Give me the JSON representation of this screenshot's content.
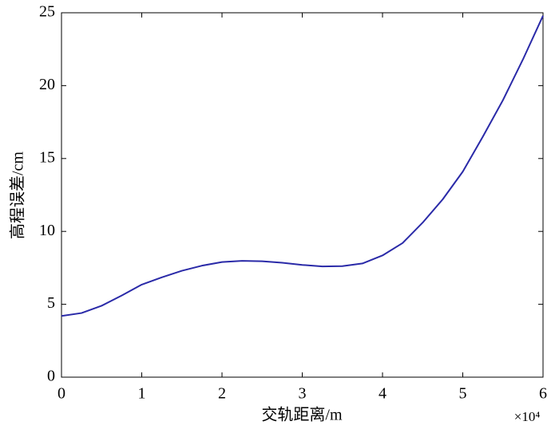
{
  "chart_data": {
    "type": "line",
    "x_label": "交轨距离/m",
    "y_label": "高程误差/cm",
    "x_multiplier": "×10⁴",
    "x": [
      0,
      0.25,
      0.5,
      0.75,
      1,
      1.25,
      1.5,
      1.75,
      2,
      2.25,
      2.5,
      2.75,
      3,
      3.25,
      3.5,
      3.75,
      4,
      4.25,
      4.5,
      4.75,
      5,
      5.25,
      5.5,
      5.75,
      6
    ],
    "series": [
      {
        "color": "#2a2aa8",
        "values": [
          4.2,
          4.4,
          4.9,
          5.6,
          6.35,
          6.85,
          7.3,
          7.65,
          7.9,
          7.98,
          7.95,
          7.85,
          7.7,
          7.6,
          7.62,
          7.8,
          8.35,
          9.2,
          10.6,
          12.2,
          14.1,
          16.5,
          19.0,
          21.8,
          24.8
        ]
      }
    ],
    "xlim": [
      0,
      6
    ],
    "xticks": [
      0,
      1,
      2,
      3,
      4,
      5,
      6
    ],
    "ylim": [
      0,
      25
    ],
    "yticks": [
      0,
      5,
      10,
      15,
      20,
      25
    ]
  }
}
